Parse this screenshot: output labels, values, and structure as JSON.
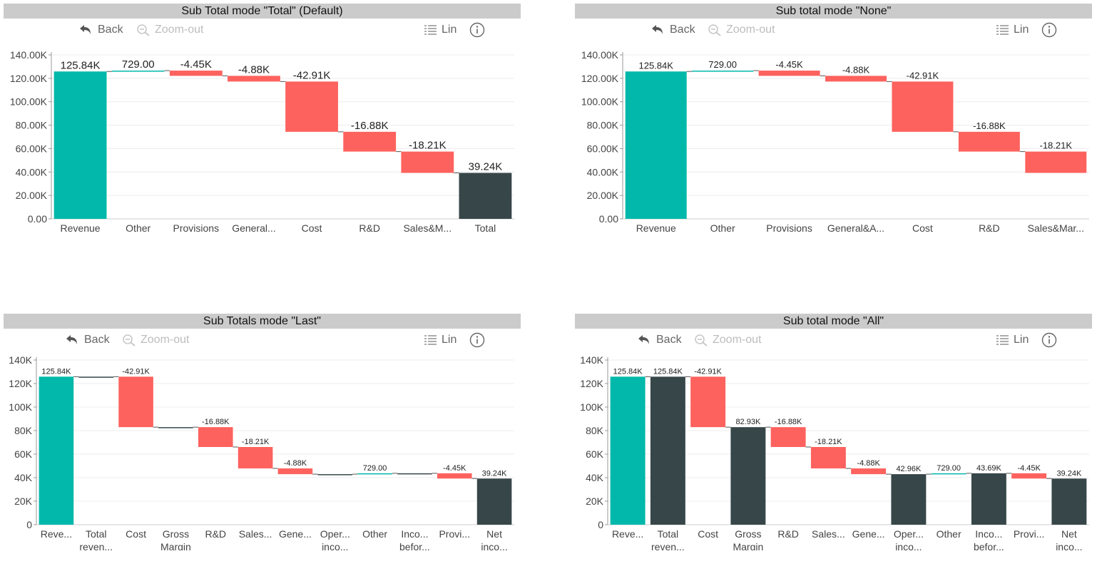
{
  "colors": {
    "increase": "#01b8aa",
    "decrease": "#fd625e",
    "total": "#374649",
    "title_bg": "#cbcbcb"
  },
  "toolbar": {
    "back_label": "Back",
    "zoom_label": "Zoom-out",
    "scale_label": "Lin"
  },
  "panels": [
    {
      "title": "Sub Total mode \"Total\" (Default)",
      "chart_data": {
        "type": "bar",
        "subtype": "waterfall",
        "categories": [
          "Revenue",
          "Other",
          "Provisions",
          "General...",
          "Cost",
          "R&D",
          "Sales&M...",
          "Total"
        ],
        "values": [
          125840,
          729,
          -4450,
          -4880,
          -42910,
          -16880,
          -18210,
          39240
        ],
        "kinds": [
          "increase",
          "increase",
          "decrease",
          "decrease",
          "decrease",
          "decrease",
          "decrease",
          "total"
        ],
        "data_labels": [
          "125.84K",
          "729.00",
          "-4.45K",
          "-4.88K",
          "-42.91K",
          "-16.88K",
          "-18.21K",
          "39.24K"
        ],
        "y_ticks": [
          0,
          20000,
          40000,
          60000,
          80000,
          100000,
          120000,
          140000
        ],
        "y_tick_labels": [
          "0.00",
          "20.00K",
          "40.00K",
          "60.00K",
          "80.00K",
          "100.00K",
          "120.00K",
          "140.00K"
        ],
        "ylim": [
          0,
          140000
        ],
        "grid": true
      }
    },
    {
      "title": "Sub total mode \"None\"",
      "chart_data": {
        "type": "bar",
        "subtype": "waterfall",
        "categories": [
          "Revenue",
          "Other",
          "Provisions",
          "General&A...",
          "Cost",
          "R&D",
          "Sales&Mar..."
        ],
        "values": [
          125840,
          729,
          -4450,
          -4880,
          -42910,
          -16880,
          -18210
        ],
        "kinds": [
          "increase",
          "increase",
          "decrease",
          "decrease",
          "decrease",
          "decrease",
          "decrease"
        ],
        "data_labels": [
          "125.84K",
          "729.00",
          "-4.45K",
          "-4.88K",
          "-42.91K",
          "-16.88K",
          "-18.21K"
        ],
        "y_ticks": [
          0,
          20000,
          40000,
          60000,
          80000,
          100000,
          120000,
          140000
        ],
        "y_tick_labels": [
          "0.00",
          "20.00K",
          "40.00K",
          "60.00K",
          "80.00K",
          "100.00K",
          "120.00K",
          "140.00K"
        ],
        "ylim": [
          0,
          140000
        ],
        "grid": true
      }
    },
    {
      "title": "Sub Totals mode \"Last\"",
      "chart_data": {
        "type": "bar",
        "subtype": "waterfall",
        "categories": [
          "Reve...",
          "Total reven...",
          "Cost",
          "Gross Margin",
          "R&D",
          "Sales...",
          "Gene...",
          "Oper... inco...",
          "Other",
          "Inco... befor...",
          "Provi...",
          "Net inco..."
        ],
        "values": [
          125840,
          0,
          -42910,
          0,
          -16880,
          -18210,
          -4880,
          0,
          729,
          0,
          -4450,
          39240
        ],
        "kinds": [
          "increase",
          "subtotal",
          "decrease",
          "subtotal",
          "decrease",
          "decrease",
          "decrease",
          "subtotal",
          "increase",
          "subtotal",
          "decrease",
          "total"
        ],
        "data_labels": [
          "125.84K",
          "",
          "-42.91K",
          "",
          "-16.88K",
          "-18.21K",
          "-4.88K",
          "",
          "729.00",
          "",
          "-4.45K",
          "39.24K"
        ],
        "y_ticks": [
          0,
          20000,
          40000,
          60000,
          80000,
          100000,
          120000,
          140000
        ],
        "y_tick_labels": [
          "0",
          "20K",
          "40K",
          "60K",
          "80K",
          "100K",
          "120K",
          "140K"
        ],
        "ylim": [
          0,
          140000
        ],
        "grid": true
      }
    },
    {
      "title": "Sub total mode \"All\"",
      "chart_data": {
        "type": "bar",
        "subtype": "waterfall",
        "categories": [
          "Reve...",
          "Total reven...",
          "Cost",
          "Gross Margin",
          "R&D",
          "Sales...",
          "Gene...",
          "Oper... inco...",
          "Other",
          "Inco... befor...",
          "Provi...",
          "Net inco..."
        ],
        "values": [
          125840,
          125840,
          -42910,
          82930,
          -16880,
          -18210,
          -4880,
          42960,
          729,
          43690,
          -4450,
          39240
        ],
        "kinds": [
          "increase",
          "total",
          "decrease",
          "total",
          "decrease",
          "decrease",
          "decrease",
          "total",
          "increase",
          "total",
          "decrease",
          "total"
        ],
        "data_labels": [
          "125.84K",
          "125.84K",
          "-42.91K",
          "82.93K",
          "-16.88K",
          "-18.21K",
          "-4.88K",
          "42.96K",
          "729.00",
          "43.69K",
          "-4.45K",
          "39.24K"
        ],
        "y_ticks": [
          0,
          20000,
          40000,
          60000,
          80000,
          100000,
          120000,
          140000
        ],
        "y_tick_labels": [
          "0",
          "20K",
          "40K",
          "60K",
          "80K",
          "100K",
          "120K",
          "140K"
        ],
        "ylim": [
          0,
          140000
        ],
        "grid": true
      }
    }
  ]
}
